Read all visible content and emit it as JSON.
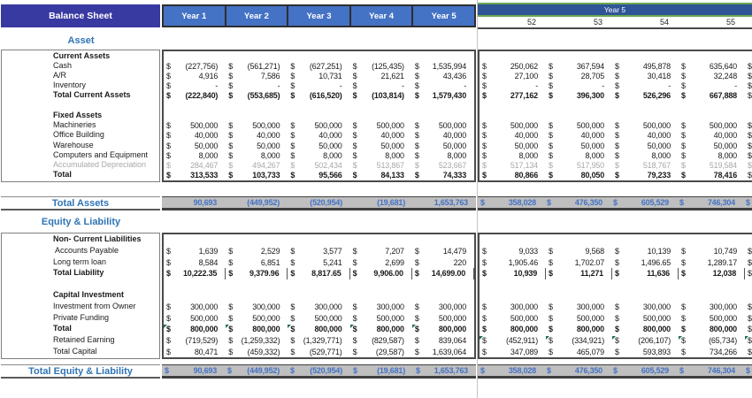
{
  "title": "Balance Sheet",
  "columns": {
    "year_tabs": [
      "Year 1",
      "Year 2",
      "Year 3",
      "Year 4",
      "Year 5"
    ],
    "right_group_label": "Year 5",
    "right_cols": [
      "52",
      "53",
      "54",
      "55"
    ]
  },
  "colors": {
    "header_bg": "#3939A2",
    "tab_bg": "#4472C4",
    "group_bg": "#2F5597",
    "green_line": "#6AA84F",
    "accent_blue": "#2E74B5",
    "band_bg": "#BFBFBF",
    "band_text": "#4472C4",
    "muted_gray": "#a8a8a8",
    "marker_green": "#1E7145"
  },
  "asset": {
    "title": "Asset",
    "rows": [
      {
        "kind": "header",
        "label": "Current Assets"
      },
      {
        "kind": "item",
        "label": "Cash",
        "left": [
          "(227,756)",
          "(561,271)",
          "(627,251)",
          "(125,435)",
          "1,535,994"
        ],
        "right": [
          "250,062",
          "367,594",
          "495,878",
          "635,640"
        ]
      },
      {
        "kind": "item",
        "label": "A/R",
        "left": [
          "4,916",
          "7,586",
          "10,731",
          "21,621",
          "43,436"
        ],
        "right": [
          "27,100",
          "28,705",
          "30,418",
          "32,248"
        ]
      },
      {
        "kind": "item",
        "label": "Inventory",
        "left": [
          "-",
          "-",
          "-",
          "-",
          "-"
        ],
        "right": [
          "-",
          "-",
          "-",
          "-"
        ]
      },
      {
        "kind": "total",
        "label": "Total Current Assets",
        "left": [
          "(222,840)",
          "(553,685)",
          "(616,520)",
          "(103,814)",
          "1,579,430"
        ],
        "right": [
          "277,162",
          "396,300",
          "526,296",
          "667,888"
        ]
      },
      {
        "kind": "blank"
      },
      {
        "kind": "header",
        "label": "Fixed Assets"
      },
      {
        "kind": "item",
        "label": "Machineries",
        "left": [
          "500,000",
          "500,000",
          "500,000",
          "500,000",
          "500,000"
        ],
        "right": [
          "500,000",
          "500,000",
          "500,000",
          "500,000"
        ]
      },
      {
        "kind": "item",
        "label": "Office Building",
        "left": [
          "40,000",
          "40,000",
          "40,000",
          "40,000",
          "40,000"
        ],
        "right": [
          "40,000",
          "40,000",
          "40,000",
          "40,000"
        ]
      },
      {
        "kind": "item",
        "label": "Warehouse",
        "left": [
          "50,000",
          "50,000",
          "50,000",
          "50,000",
          "50,000"
        ],
        "right": [
          "50,000",
          "50,000",
          "50,000",
          "50,000"
        ]
      },
      {
        "kind": "item",
        "label": "Computers and Equipment",
        "left": [
          "8,000",
          "8,000",
          "8,000",
          "8,000",
          "8,000"
        ],
        "right": [
          "8,000",
          "8,000",
          "8,000",
          "8,000"
        ]
      },
      {
        "kind": "muted",
        "label": "Accumulated Depreciation",
        "left": [
          "284,467",
          "494,267",
          "502,434",
          "513,867",
          "523,667"
        ],
        "right": [
          "517,134",
          "517,950",
          "518,767",
          "519,584"
        ]
      },
      {
        "kind": "total",
        "label": "Total",
        "left": [
          "313,533",
          "103,733",
          "95,566",
          "84,133",
          "74,333"
        ],
        "right": [
          "80,866",
          "80,050",
          "79,233",
          "78,416"
        ]
      }
    ]
  },
  "total_assets": {
    "label": "Total Assets",
    "left_currency": false,
    "left": [
      "90,693",
      "(449,952)",
      "(520,954)",
      "(19,681)",
      "1,653,763"
    ],
    "right": [
      "358,028",
      "476,350",
      "605,529",
      "746,304"
    ]
  },
  "equity": {
    "title": "Equity & Liability",
    "rows": [
      {
        "kind": "header",
        "label": "Non- Current Liabilities"
      },
      {
        "kind": "item",
        "label": " Accounts Payable",
        "left": [
          "1,639",
          "2,529",
          "3,577",
          "7,207",
          "14,479"
        ],
        "right": [
          "9,033",
          "9,568",
          "10,139",
          "10,749"
        ]
      },
      {
        "kind": "item",
        "label": "Long term loan",
        "left": [
          "8,584",
          "6,851",
          "5,241",
          "2,699",
          "220"
        ],
        "right": [
          "1,905.46",
          "1,702.07",
          "1,496.65",
          "1,289.17"
        ]
      },
      {
        "kind": "total",
        "label": "Total Liability",
        "vbar": true,
        "left": [
          "10,222.35",
          "9,379.96",
          "8,817.65",
          "9,906.00",
          "14,699.00"
        ],
        "right": [
          "10,939",
          "11,271",
          "11,636",
          "12,038"
        ]
      },
      {
        "kind": "blank"
      },
      {
        "kind": "header",
        "label": "Capital Investment"
      },
      {
        "kind": "item",
        "label": "Investment from Owner",
        "left": [
          "300,000",
          "300,000",
          "300,000",
          "300,000",
          "300,000"
        ],
        "right": [
          "300,000",
          "300,000",
          "300,000",
          "300,000"
        ]
      },
      {
        "kind": "item",
        "label": "Private Funding",
        "left": [
          "500,000",
          "500,000",
          "500,000",
          "500,000",
          "500,000"
        ],
        "right": [
          "500,000",
          "500,000",
          "500,000",
          "500,000"
        ]
      },
      {
        "kind": "total",
        "label": "Total",
        "marker_left": true,
        "left": [
          "800,000",
          "800,000",
          "800,000",
          "800,000",
          "800,000"
        ],
        "right": [
          "800,000",
          "800,000",
          "800,000",
          "800,000"
        ]
      },
      {
        "kind": "item",
        "label": "Retained Earning",
        "marker_right": true,
        "left": [
          "(719,529)",
          "(1,259,332)",
          "(1,329,771)",
          "(829,587)",
          "839,064"
        ],
        "right": [
          "(452,911)",
          "(334,921)",
          "(206,107)",
          "(65,734)"
        ]
      },
      {
        "kind": "item",
        "label": "Total Capital",
        "left": [
          "80,471",
          "(459,332)",
          "(529,771)",
          "(29,587)",
          "1,639,064"
        ],
        "right": [
          "347,089",
          "465,079",
          "593,893",
          "734,266"
        ]
      }
    ]
  },
  "total_equity": {
    "label": "Total Equity & Liability",
    "left_currency": true,
    "left": [
      "90,693",
      "(449,952)",
      "(520,954)",
      "(19,681)",
      "1,653,763"
    ],
    "right": [
      "358,028",
      "476,350",
      "605,529",
      "746,304"
    ]
  }
}
